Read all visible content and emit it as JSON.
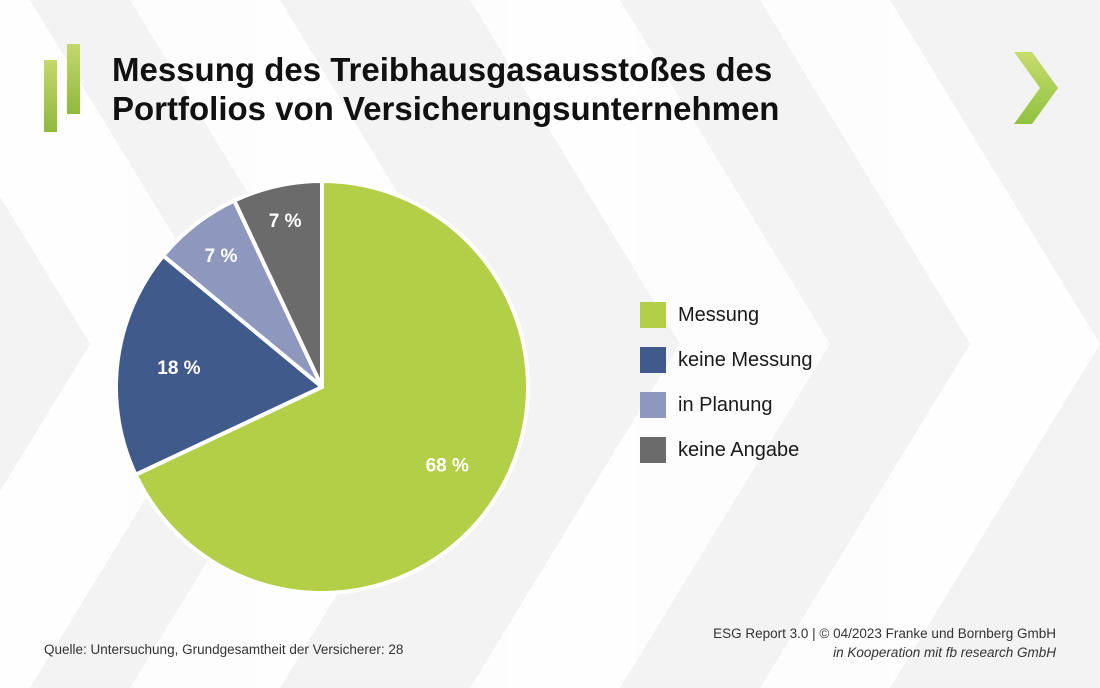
{
  "header": {
    "title_line1": "Messung des Treibhausgasausstoßes des",
    "title_line2": "Portfolios von Versicherungsunternehmen"
  },
  "colors": {
    "messung": "#b2cf47",
    "keine_messung": "#405a8c",
    "in_planung": "#8e97be",
    "keine_angabe": "#6b6b6b",
    "accent_green": "#8fc23f",
    "background": "#f3f3f3"
  },
  "icons": {
    "logo": "bar-logo-icon",
    "nav": "chevron-right-icon"
  },
  "chart_data": {
    "type": "pie",
    "title": "Messung des Treibhausgasausstoßes des Portfolios von Versicherungsunternehmen",
    "legend_position": "right",
    "slices": [
      {
        "label": "Messung",
        "value": 68,
        "display": "68 %",
        "color": "#b2cf47"
      },
      {
        "label": "keine Messung",
        "value": 18,
        "display": "18 %",
        "color": "#405a8c"
      },
      {
        "label": "in Planung",
        "value": 7,
        "display": "7 %",
        "color": "#8e97be"
      },
      {
        "label": "keine Angabe",
        "value": 7,
        "display": "7 %",
        "color": "#6b6b6b"
      }
    ]
  },
  "footer": {
    "source": "Quelle: Untersuchung, Grundgesamtheit der Versicherer: 28",
    "credit_line1": "ESG Report 3.0 | © 04/2023 Franke und Bornberg GmbH",
    "credit_line2": "in Kooperation mit fb research GmbH"
  }
}
